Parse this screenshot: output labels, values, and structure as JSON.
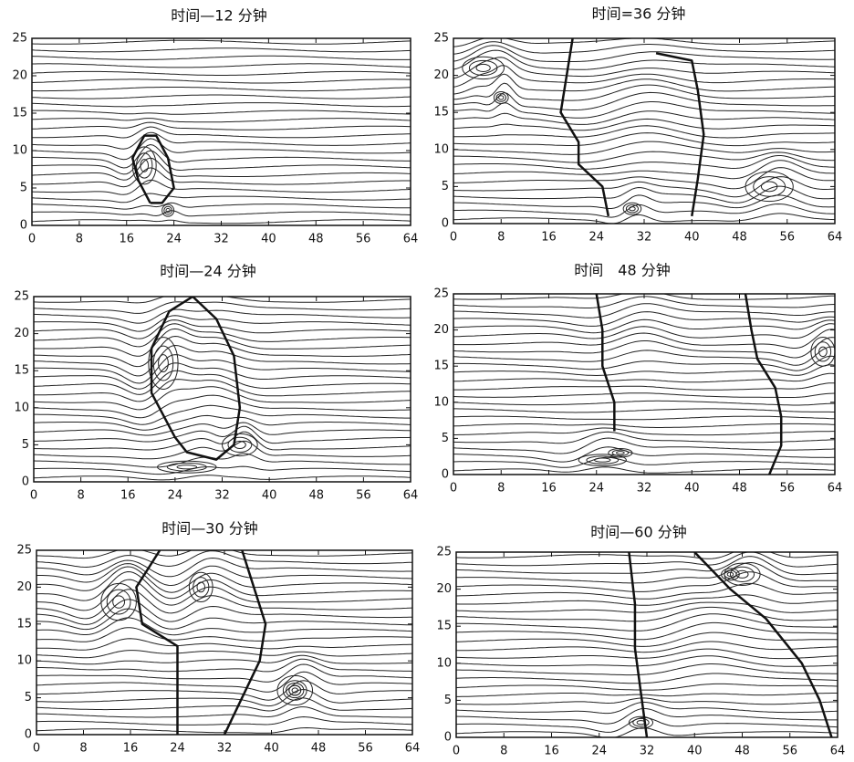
{
  "chart_data": [
    {
      "type": "streamline",
      "title": "时间—12 分钟",
      "xlim": [
        0,
        64
      ],
      "ylim": [
        0,
        25
      ],
      "xticks": [
        0,
        8,
        16,
        24,
        32,
        40,
        48,
        56,
        64
      ],
      "yticks": [
        0,
        5,
        10,
        15,
        20,
        25
      ]
    },
    {
      "type": "streamline",
      "title": "时间=36 分钟",
      "xlim": [
        0,
        64
      ],
      "ylim": [
        0,
        25
      ],
      "xticks": [
        0,
        8,
        16,
        24,
        32,
        40,
        48,
        56,
        64
      ],
      "yticks": [
        0,
        5,
        10,
        15,
        20,
        25
      ]
    },
    {
      "type": "streamline",
      "title": "时间—24 分钟",
      "xlim": [
        0,
        64
      ],
      "ylim": [
        0,
        25
      ],
      "xticks": [
        0,
        8,
        16,
        24,
        32,
        40,
        48,
        56,
        64
      ],
      "yticks": [
        0,
        5,
        10,
        15,
        20,
        25
      ]
    },
    {
      "type": "streamline",
      "title": "时间　48 分钟",
      "xlim": [
        0,
        64
      ],
      "ylim": [
        0,
        25
      ],
      "xticks": [
        0,
        8,
        16,
        24,
        32,
        40,
        48,
        56,
        64
      ],
      "yticks": [
        0,
        5,
        10,
        15,
        20,
        25
      ]
    },
    {
      "type": "streamline",
      "title": "时间—30 分钟",
      "xlim": [
        0,
        64
      ],
      "ylim": [
        0,
        25
      ],
      "xticks": [
        0,
        8,
        16,
        24,
        32,
        40,
        48,
        56,
        64
      ],
      "yticks": [
        0,
        5,
        10,
        15,
        20,
        25
      ]
    },
    {
      "type": "streamline",
      "title": "时间—60 分钟",
      "xlim": [
        0,
        64
      ],
      "ylim": [
        0,
        25
      ],
      "xticks": [
        0,
        8,
        16,
        24,
        32,
        40,
        48,
        56,
        64
      ],
      "yticks": [
        0,
        5,
        10,
        15,
        20,
        25
      ]
    }
  ]
}
